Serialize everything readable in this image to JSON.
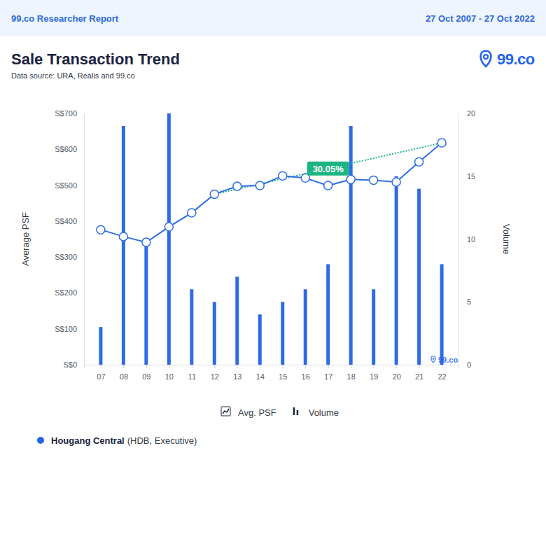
{
  "page": {
    "header_left": "99.co Researcher Report",
    "header_right": "27 Oct 2007 - 27 Oct 2022",
    "logo": "99.co",
    "footer_name": "Hougang Central",
    "footer_detail": "(HDB, Executive)",
    "footer_color": "#2563eb"
  },
  "chart_data": {
    "type": "line",
    "title": "Sale Transaction Trend",
    "subtitle": "Data source: URA, Realis and 99.co",
    "watermark": "99.co",
    "y_label": "Average PSF",
    "y2_label": "Volume",
    "categories": [
      "07",
      "08",
      "09",
      "10",
      "11",
      "12",
      "13",
      "14",
      "15",
      "16",
      "17",
      "18",
      "19",
      "20",
      "21",
      "22"
    ],
    "series": [
      {
        "name": "Avg. PSF",
        "type": "line",
        "marker": "circle",
        "color": "#2f6fe4",
        "values": [
          376,
          357,
          341,
          384,
          423,
          475,
          497,
          499,
          526,
          520,
          499,
          516,
          514,
          509,
          565,
          618
        ]
      },
      {
        "name": "Volume",
        "type": "bar",
        "axis": "y2",
        "color": "#2f6be6",
        "values": [
          3,
          19,
          10,
          20,
          6,
          5,
          7,
          4,
          5,
          6,
          8,
          19,
          6,
          15,
          14,
          8
        ]
      }
    ],
    "ylim": [
      0,
      700
    ],
    "yticks": [
      {
        "value": 0,
        "label": "S$0"
      },
      {
        "value": 100,
        "label": "S$100"
      },
      {
        "value": 200,
        "label": "S$200"
      },
      {
        "value": 300,
        "label": "S$300"
      },
      {
        "value": 400,
        "label": "S$400"
      },
      {
        "value": 500,
        "label": "S$500"
      },
      {
        "value": 600,
        "label": "S$600"
      },
      {
        "value": 700,
        "label": "S$700"
      }
    ],
    "y2lim": [
      0,
      20
    ],
    "y2ticks": [
      0,
      5,
      10,
      15,
      20
    ],
    "annotations": [
      {
        "text": "30.05%",
        "from": "12",
        "to": "22",
        "color": "#1db584",
        "line_style": "dotted"
      }
    ],
    "legend": "bottom",
    "grid": false
  }
}
